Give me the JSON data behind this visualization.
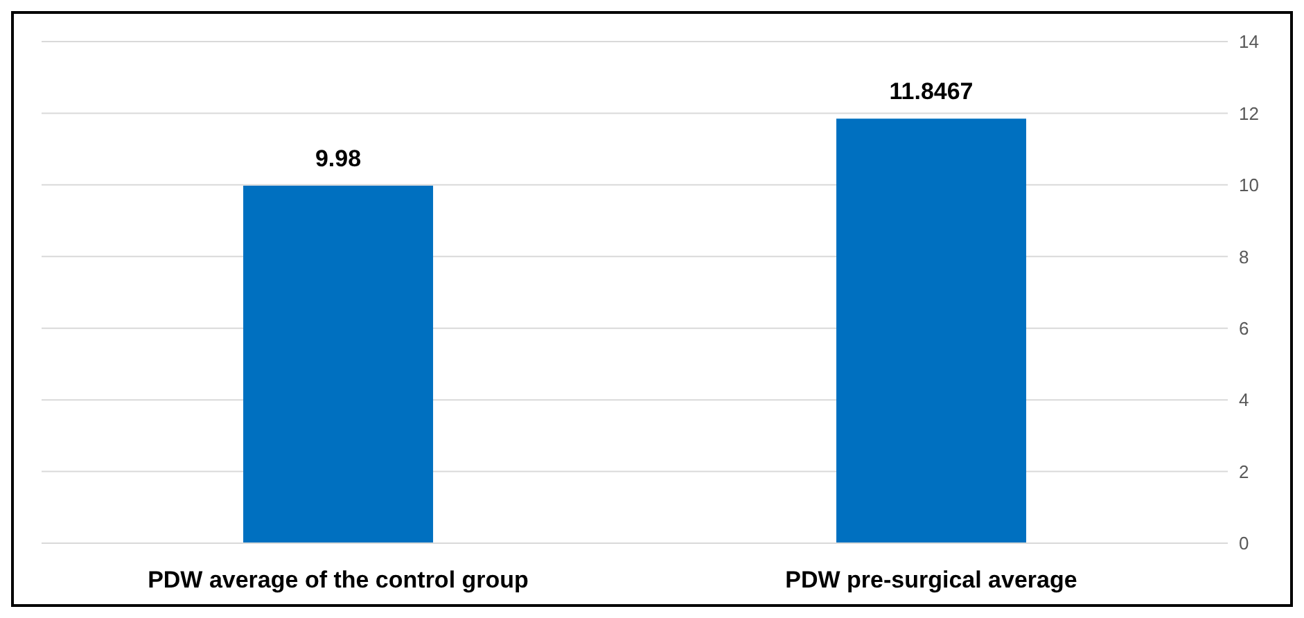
{
  "chart_data": {
    "type": "bar",
    "categories": [
      "PDW  average of the control group",
      "PDW pre-surgical average"
    ],
    "series": [
      {
        "color": "#0070c0",
        "values": [
          9.98,
          11.8467
        ]
      }
    ],
    "ylim": [
      0,
      14
    ],
    "yticks": [
      0,
      2,
      4,
      6,
      8,
      10,
      12,
      14
    ],
    "grid": "y",
    "data_labels": true
  }
}
